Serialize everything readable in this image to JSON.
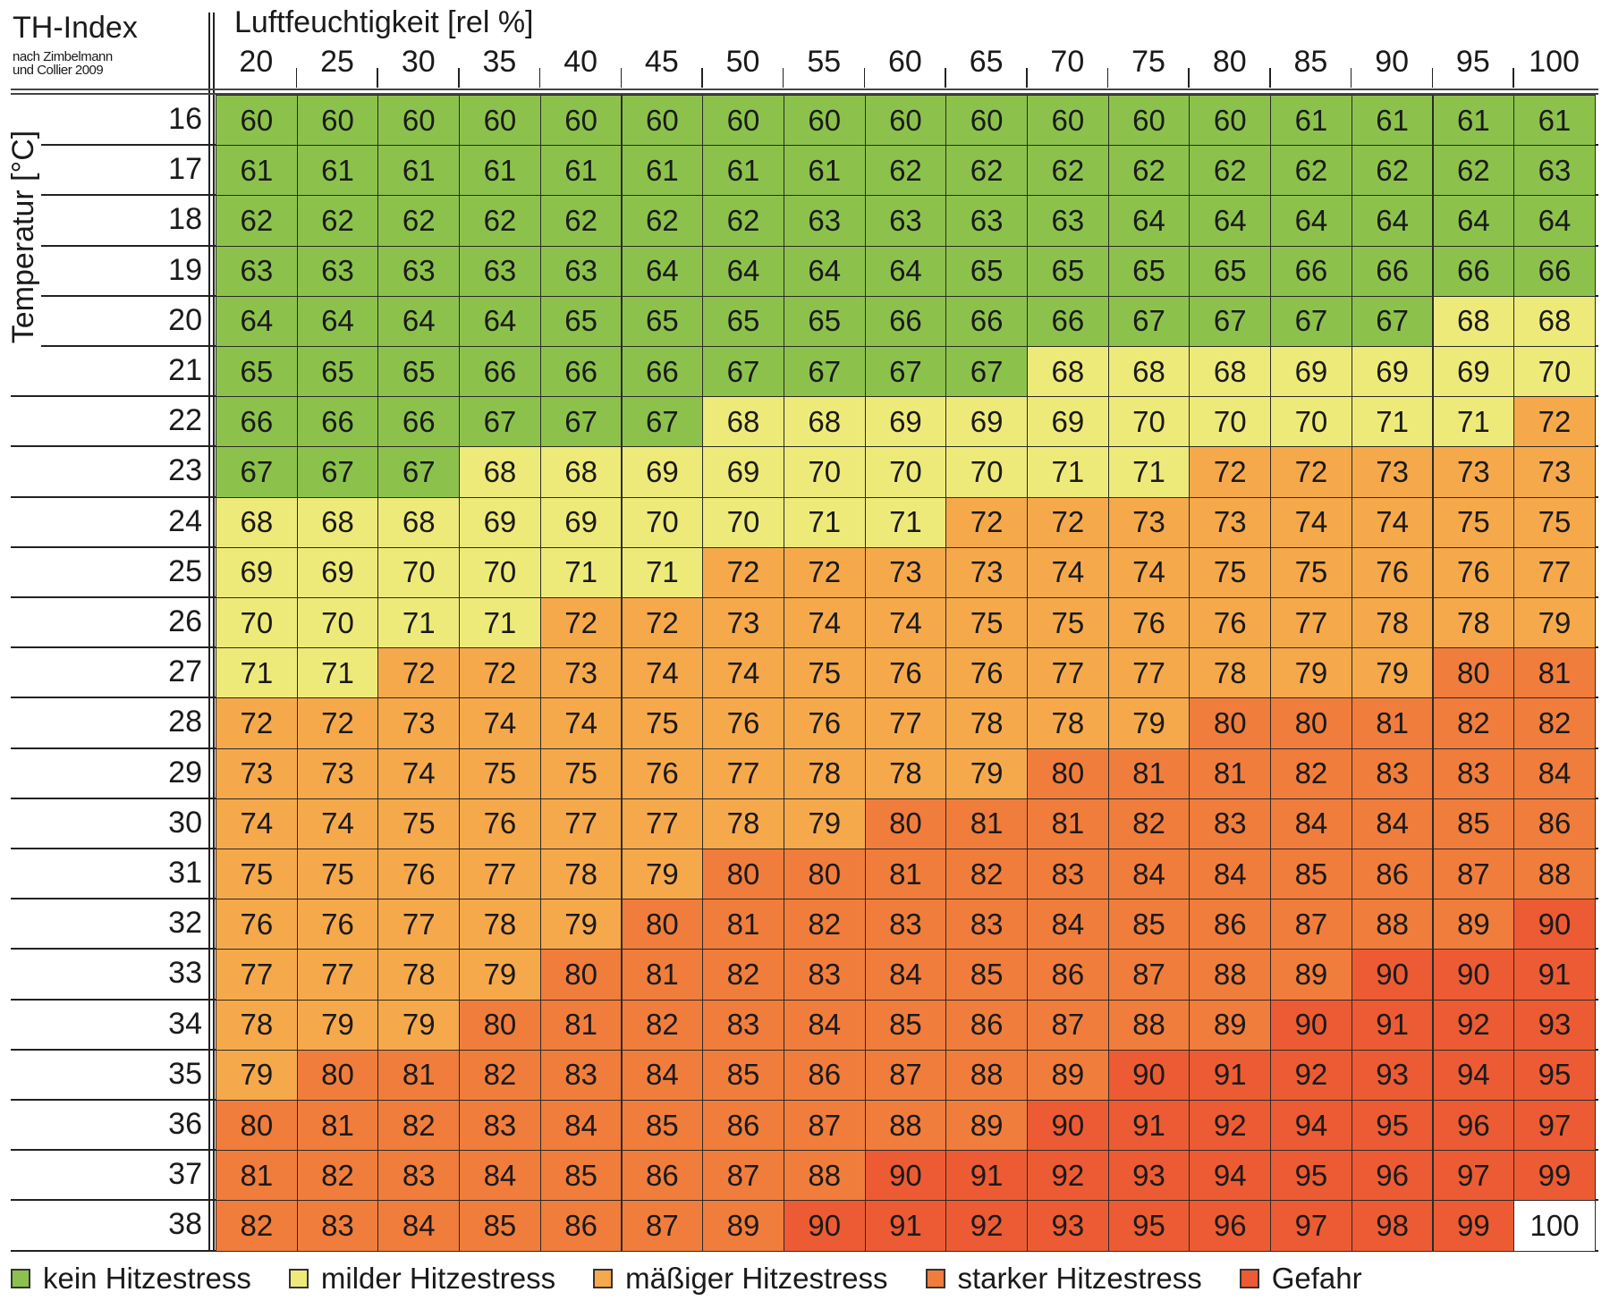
{
  "chart_data": {
    "type": "heatmap",
    "title": "TH-Index",
    "subtitle_lines": [
      "nach Zimbelmann",
      "und Collier 2009"
    ],
    "xlabel": "Luftfeuchtigkeit [rel %]",
    "ylabel": "Temperatur [°C]",
    "x": [
      "20",
      "25",
      "30",
      "35",
      "40",
      "45",
      "50",
      "55",
      "60",
      "65",
      "70",
      "75",
      "80",
      "85",
      "90",
      "95",
      "100"
    ],
    "y": [
      "16",
      "17",
      "18",
      "19",
      "20",
      "21",
      "22",
      "23",
      "24",
      "25",
      "26",
      "27",
      "28",
      "29",
      "30",
      "31",
      "32",
      "33",
      "34",
      "35",
      "36",
      "37",
      "38"
    ],
    "values": [
      [
        60,
        60,
        60,
        60,
        60,
        60,
        60,
        60,
        60,
        60,
        60,
        60,
        60,
        61,
        61,
        61,
        61
      ],
      [
        61,
        61,
        61,
        61,
        61,
        61,
        61,
        61,
        62,
        62,
        62,
        62,
        62,
        62,
        62,
        62,
        63
      ],
      [
        62,
        62,
        62,
        62,
        62,
        62,
        62,
        63,
        63,
        63,
        63,
        64,
        64,
        64,
        64,
        64,
        64
      ],
      [
        63,
        63,
        63,
        63,
        63,
        64,
        64,
        64,
        64,
        65,
        65,
        65,
        65,
        66,
        66,
        66,
        66
      ],
      [
        64,
        64,
        64,
        64,
        65,
        65,
        65,
        65,
        66,
        66,
        66,
        67,
        67,
        67,
        67,
        68,
        68
      ],
      [
        65,
        65,
        65,
        66,
        66,
        66,
        67,
        67,
        67,
        67,
        68,
        68,
        68,
        69,
        69,
        69,
        70
      ],
      [
        66,
        66,
        66,
        67,
        67,
        67,
        68,
        68,
        69,
        69,
        69,
        70,
        70,
        70,
        71,
        71,
        72
      ],
      [
        67,
        67,
        67,
        68,
        68,
        69,
        69,
        70,
        70,
        70,
        71,
        71,
        72,
        72,
        73,
        73,
        73
      ],
      [
        68,
        68,
        68,
        69,
        69,
        70,
        70,
        71,
        71,
        72,
        72,
        73,
        73,
        74,
        74,
        75,
        75
      ],
      [
        69,
        69,
        70,
        70,
        71,
        71,
        72,
        72,
        73,
        73,
        74,
        74,
        75,
        75,
        76,
        76,
        77
      ],
      [
        70,
        70,
        71,
        71,
        72,
        72,
        73,
        74,
        74,
        75,
        75,
        76,
        76,
        77,
        78,
        78,
        79
      ],
      [
        71,
        71,
        72,
        72,
        73,
        74,
        74,
        75,
        76,
        76,
        77,
        77,
        78,
        79,
        79,
        80,
        81
      ],
      [
        72,
        72,
        73,
        74,
        74,
        75,
        76,
        76,
        77,
        78,
        78,
        79,
        80,
        80,
        81,
        82,
        82
      ],
      [
        73,
        73,
        74,
        75,
        75,
        76,
        77,
        78,
        78,
        79,
        80,
        81,
        81,
        82,
        83,
        83,
        84
      ],
      [
        74,
        74,
        75,
        76,
        77,
        77,
        78,
        79,
        80,
        81,
        81,
        82,
        83,
        84,
        84,
        85,
        86
      ],
      [
        75,
        75,
        76,
        77,
        78,
        79,
        80,
        80,
        81,
        82,
        83,
        84,
        84,
        85,
        86,
        87,
        88
      ],
      [
        76,
        76,
        77,
        78,
        79,
        80,
        81,
        82,
        83,
        83,
        84,
        85,
        86,
        87,
        88,
        89,
        90
      ],
      [
        77,
        77,
        78,
        79,
        80,
        81,
        82,
        83,
        84,
        85,
        86,
        87,
        88,
        89,
        90,
        90,
        91
      ],
      [
        78,
        79,
        79,
        80,
        81,
        82,
        83,
        84,
        85,
        86,
        87,
        88,
        89,
        90,
        91,
        92,
        93
      ],
      [
        79,
        80,
        81,
        82,
        83,
        84,
        85,
        86,
        87,
        88,
        89,
        90,
        91,
        92,
        93,
        94,
        95
      ],
      [
        80,
        81,
        82,
        83,
        84,
        85,
        86,
        87,
        88,
        89,
        90,
        91,
        92,
        94,
        95,
        96,
        97
      ],
      [
        81,
        82,
        83,
        84,
        85,
        86,
        87,
        88,
        90,
        91,
        92,
        93,
        94,
        95,
        96,
        97,
        99
      ],
      [
        82,
        83,
        84,
        85,
        86,
        87,
        89,
        90,
        91,
        92,
        93,
        95,
        96,
        97,
        98,
        99,
        100
      ]
    ],
    "legend": [
      {
        "label": "kein Hitzestress",
        "min": 0,
        "max": 67,
        "color": "#8cc24c"
      },
      {
        "label": "milder Hitzestress",
        "min": 68,
        "max": 71,
        "color": "#eeea7a"
      },
      {
        "label": "mäßiger Hitzestress",
        "min": 72,
        "max": 79,
        "color": "#f6a94b"
      },
      {
        "label": "starker Hitzestress",
        "min": 80,
        "max": 89,
        "color": "#f07d3c"
      },
      {
        "label": "Gefahr",
        "min": 90,
        "max": 99,
        "color": "#ec5b33"
      }
    ],
    "out_of_range_color": "#ffffff",
    "legend_position": "bottom"
  }
}
